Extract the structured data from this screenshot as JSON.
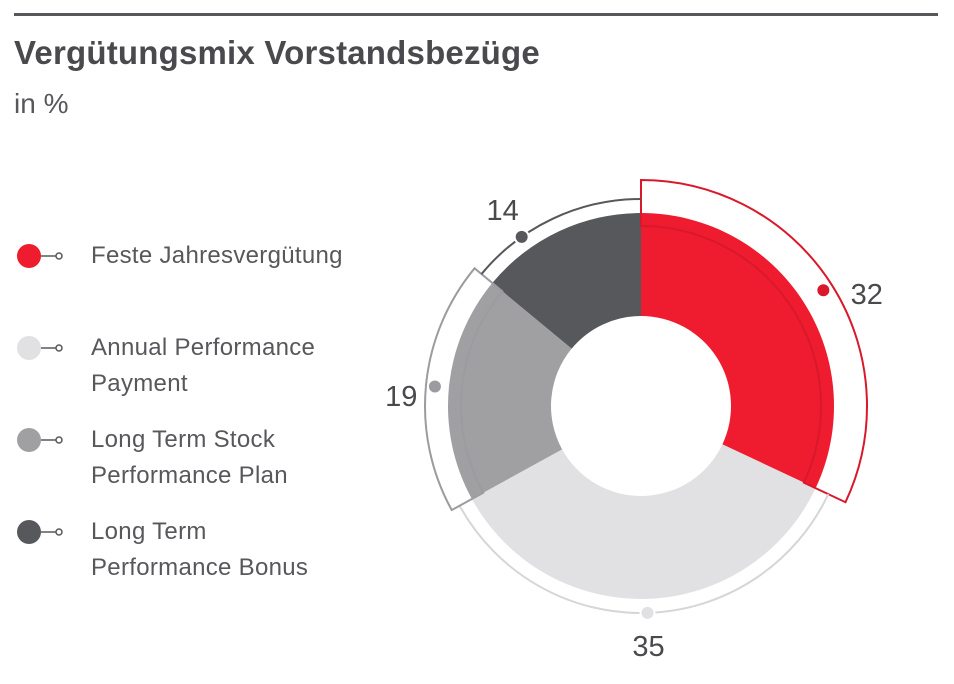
{
  "title": "Vergütungsmix Vorstandsbezüge",
  "subtitle": "in %",
  "chart_data": {
    "type": "pie",
    "variant": "donut",
    "title": "Vergütungsmix Vorstandsbezüge",
    "subtitle": "in %",
    "categories": [
      "Feste Jahresvergütung",
      "Annual Performance Payment",
      "Long Term Stock Performance Plan",
      "Long Term Performance Bonus"
    ],
    "legend_labels": [
      [
        "Feste Jahresvergütung"
      ],
      [
        "Annual Performance",
        "Payment"
      ],
      [
        "Long Term Stock",
        "Performance Plan"
      ],
      [
        "Long Term",
        "Performance Bonus"
      ]
    ],
    "values": [
      32,
      35,
      19,
      14
    ],
    "value_labels": [
      "32",
      "35",
      "19",
      "14"
    ],
    "colors": [
      "#ee1c2e",
      "#e1e1e3",
      "#a0a0a3",
      "#57585c"
    ],
    "outline_colors": [
      "#d9192b",
      "#d6d6d8",
      "#9c9ca0",
      "#58585c"
    ],
    "legend_position": "left"
  }
}
